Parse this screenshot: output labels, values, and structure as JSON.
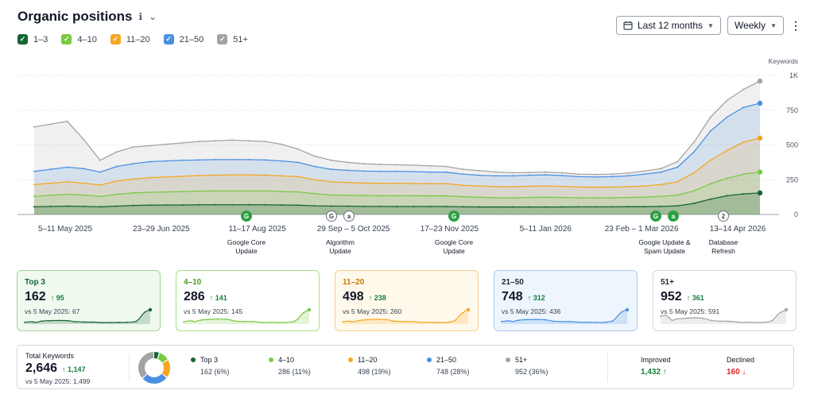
{
  "header": {
    "title": "Organic positions",
    "info_icon": "info-icon",
    "caret_icon": "chevron-down-icon"
  },
  "controls": {
    "date_range": "Last 12 months",
    "interval": "Weekly",
    "calendar_icon": "calendar-icon",
    "more_icon": "more-vertical-icon"
  },
  "legend": [
    {
      "label": "1–3",
      "color": "#166534"
    },
    {
      "label": "4–10",
      "color": "#7ac943"
    },
    {
      "label": "11–20",
      "color": "#f5a623"
    },
    {
      "label": "21–50",
      "color": "#4a90e2"
    },
    {
      "label": "51+",
      "color": "#a3a3a3"
    }
  ],
  "chart_data": {
    "type": "area",
    "y_axis_title": "Keywords",
    "y_ticks": [
      "1K",
      "750",
      "500",
      "250",
      "0"
    ],
    "ylim": [
      0,
      1000
    ],
    "x_tick_labels": [
      "5–11 May 2025",
      "23–29 Jun 2025",
      "11–17 Aug 2025",
      "29 Sep – 5 Oct 2025",
      "17–23 Nov 2025",
      "5–11 Jan 2026",
      "23 Feb – 1 Mar 2026",
      "13–14 Apr 2026"
    ],
    "grid": true,
    "series": [
      {
        "name": "1–3",
        "color": "#166534",
        "values": [
          55,
          58,
          60,
          58,
          55,
          60,
          65,
          67,
          68,
          68,
          70,
          70,
          70,
          70,
          70,
          68,
          67,
          62,
          60,
          60,
          58,
          58,
          57,
          57,
          57,
          57,
          55,
          54,
          54,
          54,
          54,
          54,
          54,
          55,
          55,
          55,
          56,
          56,
          58,
          62,
          80,
          110,
          135,
          148,
          155
        ]
      },
      {
        "name": "4–10",
        "color": "#7ac943",
        "values": [
          130,
          138,
          145,
          140,
          130,
          145,
          155,
          160,
          162,
          165,
          168,
          170,
          170,
          170,
          170,
          165,
          162,
          150,
          140,
          138,
          136,
          135,
          135,
          135,
          134,
          134,
          128,
          124,
          120,
          120,
          122,
          124,
          122,
          120,
          120,
          120,
          122,
          125,
          130,
          140,
          170,
          220,
          260,
          290,
          305
        ]
      },
      {
        "name": "11–20",
        "color": "#f5a623",
        "values": [
          215,
          225,
          235,
          225,
          212,
          240,
          255,
          265,
          270,
          275,
          280,
          283,
          285,
          285,
          283,
          278,
          272,
          250,
          235,
          230,
          226,
          224,
          224,
          223,
          222,
          222,
          210,
          205,
          200,
          200,
          203,
          205,
          202,
          198,
          196,
          197,
          200,
          205,
          215,
          235,
          300,
          390,
          460,
          520,
          550
        ]
      },
      {
        "name": "21–50",
        "color": "#4a90e2",
        "values": [
          310,
          325,
          340,
          330,
          305,
          345,
          365,
          380,
          385,
          390,
          392,
          395,
          395,
          395,
          392,
          385,
          375,
          345,
          325,
          318,
          312,
          310,
          310,
          308,
          305,
          304,
          290,
          282,
          278,
          278,
          282,
          285,
          280,
          272,
          270,
          272,
          278,
          290,
          305,
          340,
          450,
          600,
          700,
          770,
          800
        ]
      },
      {
        "name": "51+",
        "color": "#a3a3a3",
        "values": [
          630,
          650,
          670,
          540,
          390,
          450,
          485,
          495,
          505,
          515,
          525,
          530,
          535,
          530,
          525,
          505,
          470,
          420,
          390,
          375,
          365,
          360,
          358,
          355,
          350,
          345,
          325,
          315,
          305,
          300,
          302,
          305,
          300,
          290,
          288,
          290,
          298,
          312,
          330,
          380,
          520,
          700,
          820,
          900,
          960
        ]
      }
    ],
    "annotations": [
      {
        "badges": [
          "G"
        ],
        "label": [
          "Google Core",
          "Update"
        ]
      },
      {
        "badges": [
          "G",
          "a"
        ],
        "label": [
          "Algorithm",
          "Update"
        ]
      },
      {
        "badges": [
          "G"
        ],
        "label": [
          "Google Core",
          "Update"
        ]
      },
      {
        "badges": [
          "G",
          "a"
        ],
        "label": [
          "Google Update &",
          "Spam Update"
        ]
      },
      {
        "badges": [
          "2"
        ],
        "label": [
          "Database",
          "Refresh"
        ]
      }
    ]
  },
  "cards": [
    {
      "label": "Top 3",
      "value": "162",
      "delta": "↑ 95",
      "compare": "vs 5 May 2025: 67",
      "color": "#166534",
      "bg": "#f0f9ee",
      "border": "#9fd39a"
    },
    {
      "label": "4–10",
      "value": "286",
      "delta": "↑ 141",
      "compare": "vs 5 May 2025: 145",
      "color": "#4d9a1f",
      "bg": "#ffffff",
      "border": "#a8dc8a"
    },
    {
      "label": "11–20",
      "value": "498",
      "delta": "↑ 238",
      "compare": "vs 5 May 2025: 260",
      "color": "#c47b00",
      "bg": "#fff9ec",
      "border": "#f7cf86"
    },
    {
      "label": "21–50",
      "value": "748",
      "delta": "↑ 312",
      "compare": "vs 5 May 2025: 436",
      "color": "#1f2937",
      "bg": "#eef5fd",
      "border": "#a9cbf2"
    },
    {
      "label": "51+",
      "value": "952",
      "delta": "↑ 361",
      "compare": "vs 5 May 2025: 591",
      "color": "#1f2937",
      "bg": "#ffffff",
      "border": "#d1d5db"
    }
  ],
  "summary": {
    "total_label": "Total Keywords",
    "total_value": "2,646",
    "total_delta": "↑ 1,147",
    "total_compare": "vs 5 May 2025: 1,499",
    "breakdown": [
      {
        "name": "Top 3",
        "value": "162 (6%)",
        "share": 6,
        "color": "#166534"
      },
      {
        "name": "4–10",
        "value": "286 (11%)",
        "share": 11,
        "color": "#7ac943"
      },
      {
        "name": "11–20",
        "value": "498 (19%)",
        "share": 19,
        "color": "#f5a623"
      },
      {
        "name": "21–50",
        "value": "748 (28%)",
        "share": 28,
        "color": "#4a90e2"
      },
      {
        "name": "51+",
        "value": "952 (36%)",
        "share": 36,
        "color": "#a3a3a3"
      }
    ],
    "improved_label": "Improved",
    "improved_value": "1,432 ↑",
    "declined_label": "Declined",
    "declined_value": "160 ↓"
  }
}
